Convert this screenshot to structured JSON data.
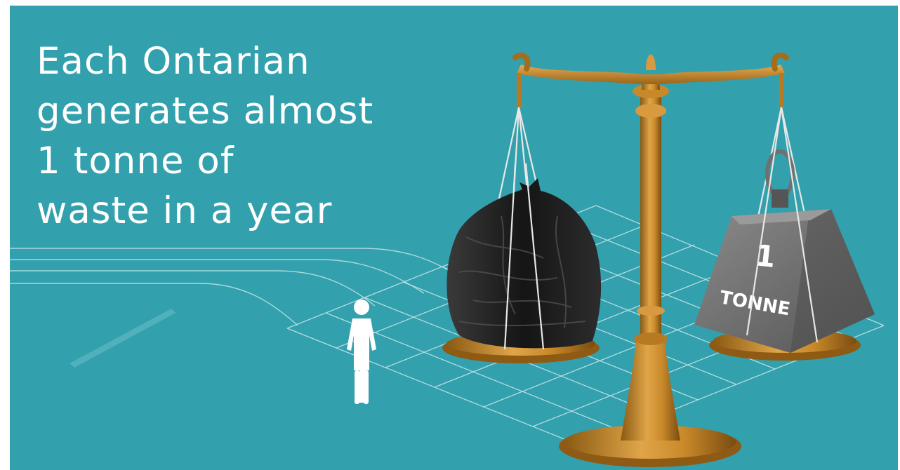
{
  "headline": {
    "lines": [
      "Each Ontarian",
      "generates almost",
      "1 tonne of",
      "waste in a year"
    ]
  },
  "weight": {
    "number": "1",
    "unit": "TONNE"
  },
  "icons": {
    "person": "person-icon",
    "garbage_bag": "garbage-bag-icon",
    "scale": "balance-scale-icon",
    "weight": "weight-icon"
  },
  "colors": {
    "background": "#33a0ad",
    "headline_text": "#ffffff",
    "scale_brass": "#c8892a",
    "weight_gray": "#6f6f6f",
    "garbage_bag": "#1c1c1c"
  }
}
